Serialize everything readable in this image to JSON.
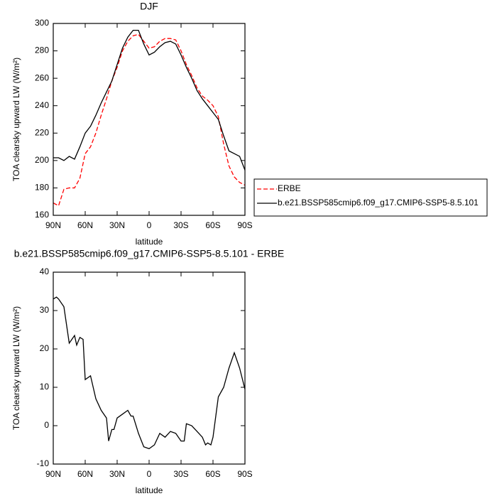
{
  "chart_data": [
    {
      "type": "line",
      "title": "DJF",
      "x_label": "latitude",
      "y_label": "TOA clearsky upward LW (W/m²)",
      "x": [
        90,
        85,
        80,
        75,
        70,
        65,
        60,
        55,
        50,
        45,
        40,
        35,
        30,
        25,
        20,
        15,
        10,
        5,
        0,
        -5,
        -10,
        -15,
        -20,
        -25,
        -30,
        -35,
        -40,
        -45,
        -50,
        -55,
        -60,
        -65,
        -70,
        -75,
        -80,
        -85,
        -90
      ],
      "series": [
        {
          "name": "ERBE",
          "color": "#ff0000",
          "line_style": "dashed",
          "values": [
            169,
            167,
            179,
            180,
            180,
            187,
            205,
            210,
            220,
            233,
            245,
            258,
            268,
            280,
            287,
            291,
            292,
            287,
            282,
            283,
            287,
            289,
            289,
            288,
            280,
            270,
            262,
            253,
            247,
            244,
            240,
            232,
            212,
            196,
            188,
            184,
            182
          ]
        },
        {
          "name": "b.e21.BSSP585cmip6.f09_g17.CMIP6-SSP5-8.5.101",
          "color": "#000000",
          "line_style": "solid",
          "values": [
            202,
            202,
            200,
            203,
            201,
            210,
            220,
            225,
            233,
            242,
            250,
            258,
            270,
            282,
            290,
            295,
            295,
            285,
            277,
            279,
            283,
            286,
            287,
            285,
            277,
            268,
            260,
            251,
            245,
            240,
            235,
            230,
            218,
            207,
            205,
            203,
            193
          ]
        }
      ],
      "xlim": [
        90,
        -90
      ],
      "xticks": [
        {
          "value": 90,
          "label": "90N"
        },
        {
          "value": 60,
          "label": "60N"
        },
        {
          "value": 30,
          "label": "30N"
        },
        0,
        {
          "value": -30,
          "label": "30S"
        },
        {
          "value": -60,
          "label": "60S"
        },
        {
          "value": -90,
          "label": "90S"
        }
      ],
      "ylim": [
        160,
        300
      ],
      "yticks": [
        160,
        180,
        200,
        220,
        240,
        260,
        280,
        300
      ],
      "legend": "right"
    },
    {
      "type": "line",
      "title": "b.e21.BSSP585cmip6.f09_g17.CMIP6-SSP5-8.5.101 - ERBE",
      "x_label": "latitude",
      "y_label": "TOA clearsky upward LW (W/m²)",
      "x": [
        90,
        87,
        85,
        80,
        75,
        70,
        68,
        65,
        62,
        60,
        55,
        50,
        45,
        40,
        38,
        35,
        33,
        30,
        25,
        20,
        17,
        15,
        10,
        5,
        0,
        -5,
        -10,
        -15,
        -20,
        -25,
        -30,
        -33,
        -35,
        -40,
        -45,
        -50,
        -53,
        -55,
        -58,
        -60,
        -65,
        -70,
        -75,
        -80,
        -85,
        -90
      ],
      "series": [
        {
          "color": "#000000",
          "line_style": "solid",
          "values": [
            33,
            33.5,
            33,
            31,
            21.5,
            23.5,
            21,
            23,
            22.5,
            12,
            13,
            7,
            4,
            2,
            -4,
            -1,
            -1,
            2,
            3,
            4,
            2.5,
            2.5,
            -2,
            -5.5,
            -6,
            -5,
            -2,
            -3,
            -1.5,
            -2,
            -4,
            -4,
            0.5,
            0,
            -1.5,
            -3,
            -5,
            -4.5,
            -5,
            -3,
            7.5,
            10,
            15,
            19,
            15,
            9.5
          ]
        }
      ],
      "xlim": [
        90,
        -90
      ],
      "xticks": [
        {
          "value": 90,
          "label": "90N"
        },
        {
          "value": 60,
          "label": "60N"
        },
        {
          "value": 30,
          "label": "30N"
        },
        0,
        {
          "value": -30,
          "label": "30S"
        },
        {
          "value": -60,
          "label": "60S"
        },
        {
          "value": -90,
          "label": "90S"
        }
      ],
      "ylim": [
        -10,
        40
      ],
      "yticks": [
        -10,
        0,
        10,
        20,
        30,
        40
      ]
    }
  ]
}
